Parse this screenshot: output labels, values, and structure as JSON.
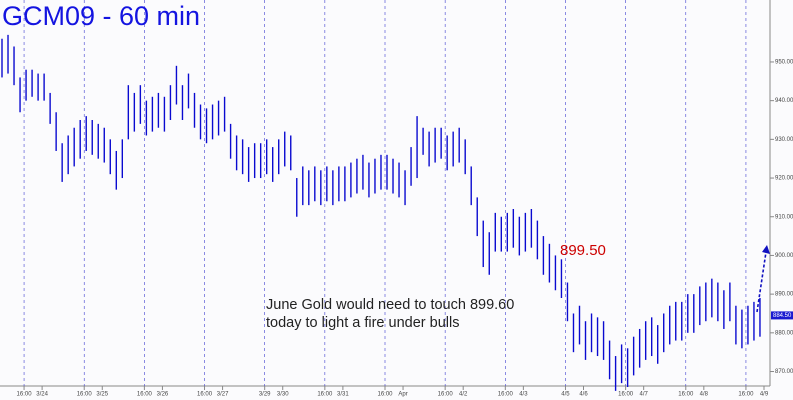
{
  "chart_data": {
    "type": "range-bar",
    "title": "GCM09 - 60 min",
    "annotation": "June Gold would need to touch 899.60 today to light a fire under bulls",
    "target_label": "899.50",
    "last_price": {
      "value": 884.5,
      "label": "884.50"
    },
    "color": "#0a0ad0",
    "high": [
      956,
      957,
      954,
      946,
      948,
      948,
      947,
      947,
      942,
      937,
      929,
      931,
      933,
      935,
      936,
      935,
      934,
      933,
      930,
      927,
      930,
      944,
      942,
      944,
      940,
      941,
      942,
      941,
      944,
      949,
      944,
      947,
      942,
      939,
      938,
      939,
      940,
      941,
      934,
      931,
      930,
      928,
      929,
      929,
      930,
      928,
      930,
      932,
      931,
      920,
      923,
      922,
      923,
      922,
      923,
      922,
      923,
      923,
      924,
      925,
      926,
      924,
      925,
      926,
      926,
      925,
      924,
      922,
      928,
      936,
      933,
      932,
      933,
      933,
      931,
      932,
      933,
      930,
      923,
      915,
      909,
      906,
      911,
      910,
      911,
      912,
      910,
      911,
      912,
      909,
      905,
      903,
      900,
      899,
      893,
      885,
      887,
      883,
      885,
      884,
      883,
      878,
      874,
      877,
      876,
      879,
      881,
      883,
      884,
      882,
      885,
      887,
      888,
      888,
      890,
      890,
      892,
      893,
      894,
      893,
      891,
      893,
      887,
      886,
      887,
      888,
      889
    ],
    "low": [
      946,
      947,
      944,
      937,
      940,
      941,
      940,
      940,
      934,
      927,
      919,
      921,
      923,
      925,
      927,
      926,
      925,
      924,
      921,
      917,
      920,
      930,
      932,
      934,
      931,
      932,
      933,
      932,
      935,
      939,
      935,
      938,
      933,
      930,
      929,
      930,
      931,
      932,
      925,
      922,
      921,
      919,
      920,
      920,
      921,
      919,
      921,
      923,
      922,
      910,
      913,
      913,
      914,
      913,
      914,
      913,
      914,
      914,
      915,
      916,
      917,
      915,
      916,
      917,
      917,
      916,
      915,
      913,
      918,
      920,
      926,
      923,
      924,
      925,
      922,
      923,
      924,
      921,
      913,
      905,
      897,
      895,
      901,
      901,
      901,
      902,
      900,
      901,
      902,
      899,
      895,
      893,
      891,
      889,
      883,
      875,
      877,
      873,
      875,
      874,
      873,
      868,
      865,
      867,
      866,
      869,
      871,
      873,
      874,
      872,
      875,
      877,
      878,
      878,
      880,
      880,
      882,
      883,
      884,
      883,
      881,
      883,
      877,
      876,
      877,
      878,
      879
    ],
    "xlim": [
      0,
      128
    ],
    "xticks": [
      {
        "value": 4,
        "label": "16:00"
      },
      {
        "value": 7,
        "label": "3/24"
      },
      {
        "value": 14,
        "label": "16:00"
      },
      {
        "value": 17,
        "label": "3/25"
      },
      {
        "value": 24,
        "label": "16:00"
      },
      {
        "value": 27,
        "label": "3/26"
      },
      {
        "value": 34,
        "label": "16:00"
      },
      {
        "value": 37,
        "label": "3/27"
      },
      {
        "value": 44,
        "label": "3/29"
      },
      {
        "value": 47,
        "label": "3/30"
      },
      {
        "value": 54,
        "label": "16:00"
      },
      {
        "value": 57,
        "label": "3/31"
      },
      {
        "value": 64,
        "label": "16:00"
      },
      {
        "value": 67,
        "label": "Apr"
      },
      {
        "value": 74,
        "label": "16:00"
      },
      {
        "value": 77,
        "label": "4/2"
      },
      {
        "value": 84,
        "label": "16:00"
      },
      {
        "value": 87,
        "label": "4/3"
      },
      {
        "value": 94,
        "label": "4/5"
      },
      {
        "value": 97,
        "label": "4/6"
      },
      {
        "value": 104,
        "label": "16:00"
      },
      {
        "value": 107,
        "label": "4/7"
      },
      {
        "value": 114,
        "label": "16:00"
      },
      {
        "value": 117,
        "label": "4/8"
      },
      {
        "value": 124,
        "label": "16:00"
      },
      {
        "value": 127,
        "label": "4/9"
      }
    ],
    "xgrid": [
      4,
      14,
      24,
      34,
      44,
      54,
      64,
      74,
      84,
      94,
      104,
      114,
      124
    ],
    "ylim": [
      866,
      958
    ],
    "yticks": [
      {
        "value": 870,
        "label": "870.00"
      },
      {
        "value": 880,
        "label": "880.00"
      },
      {
        "value": 890,
        "label": "890.00"
      },
      {
        "value": 900,
        "label": "900.00"
      },
      {
        "value": 910,
        "label": "910.00"
      },
      {
        "value": 920,
        "label": "920.00"
      },
      {
        "value": 930,
        "label": "930.00"
      },
      {
        "value": 940,
        "label": "940.00"
      },
      {
        "value": 950,
        "label": "950.00"
      }
    ]
  }
}
